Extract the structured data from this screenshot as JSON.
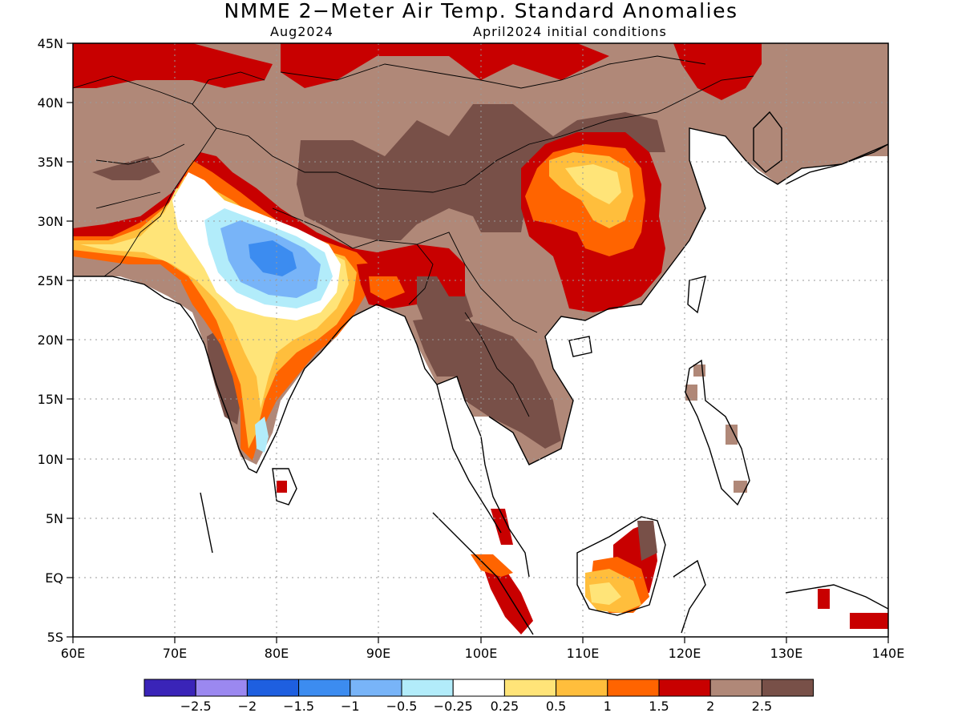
{
  "title": "NMME 2−Meter Air Temp. Standard Anomalies",
  "subtitle_left": "Aug2024",
  "subtitle_right": "April2024 initial conditions",
  "lon_labels": [
    "60E",
    "70E",
    "80E",
    "90E",
    "100E",
    "110E",
    "120E",
    "130E",
    "140E"
  ],
  "lat_labels": [
    "45N",
    "40N",
    "35N",
    "30N",
    "25N",
    "20N",
    "15N",
    "10N",
    "5N",
    "EQ",
    "5S"
  ],
  "map": {
    "lon_range": [
      60,
      140
    ],
    "lat_range": [
      -5,
      45
    ],
    "grid": "dotted every 10° lon / 5° lat"
  },
  "colorbar": {
    "colors": [
      "#3a24b8",
      "#9b88f0",
      "#1e5fe0",
      "#3c8cf0",
      "#78b4f8",
      "#b2ecfa",
      "#ffffff",
      "#ffe478",
      "#ffbe3c",
      "#ff6400",
      "#c80000",
      "#b08878",
      "#785048"
    ],
    "labels": [
      "−2.5",
      "−2",
      "−1.5",
      "−1",
      "−0.5",
      "−0.25",
      "0.25",
      "0.5",
      "1",
      "1.5",
      "2",
      "2.5"
    ]
  },
  "colors": {
    "land_default": "#b08878",
    "strong_warm": "#785048",
    "frame": "#000000"
  }
}
